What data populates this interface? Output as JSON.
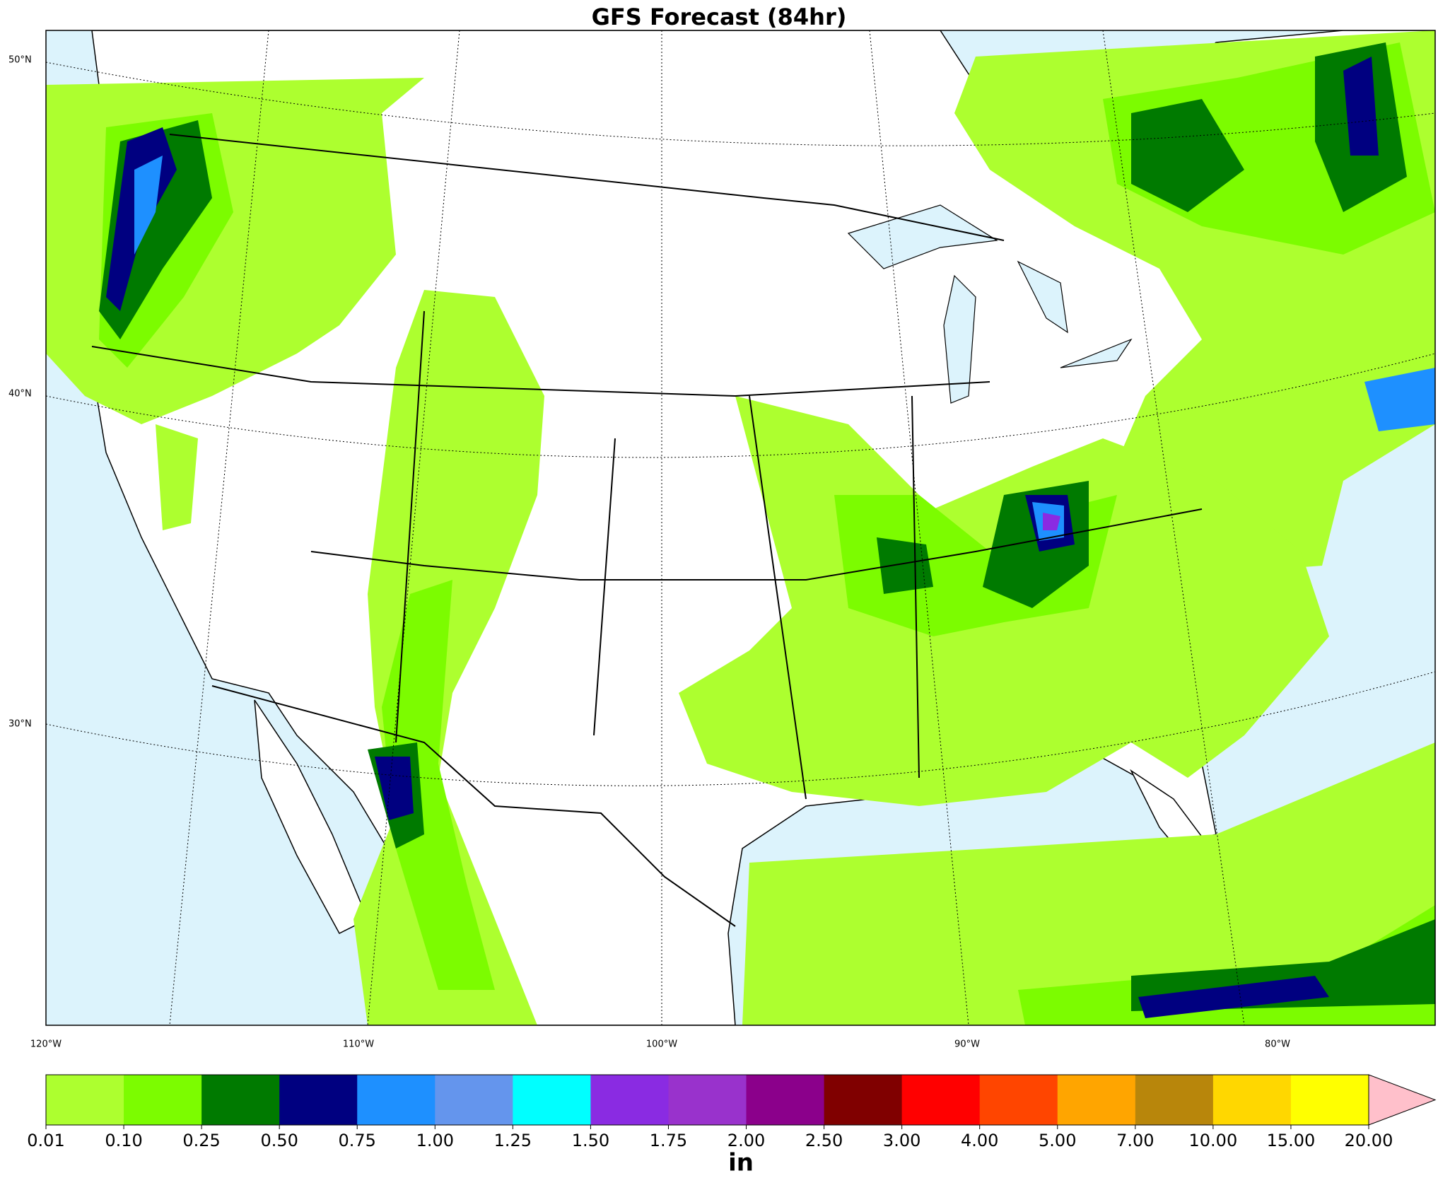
{
  "title": "GFS Forecast (84hr)",
  "map": {
    "lat_labels": [
      "50°N",
      "40°N",
      "30°N"
    ],
    "lon_labels": [
      "120°W",
      "110°W",
      "100°W",
      "90°W",
      "80°W"
    ]
  },
  "colorbar": {
    "ticks": [
      "0.01",
      "0.10",
      "0.25",
      "0.50",
      "0.75",
      "1.00",
      "1.25",
      "1.50",
      "1.75",
      "2.00",
      "2.50",
      "3.00",
      "4.00",
      "5.00",
      "7.00",
      "10.00",
      "15.00",
      "20.00"
    ],
    "colors": [
      "#adff2f",
      "#7cfc00",
      "#007a00",
      "#000080",
      "#1e90ff",
      "#6495ed",
      "#00ffff",
      "#8a2be2",
      "#9932cc",
      "#8b008b",
      "#800000",
      "#ff0000",
      "#ff4500",
      "#ffa500",
      "#b8860b",
      "#ffd700",
      "#ffff00"
    ],
    "extend_color": "#ffc0cb",
    "unit": "in"
  }
}
